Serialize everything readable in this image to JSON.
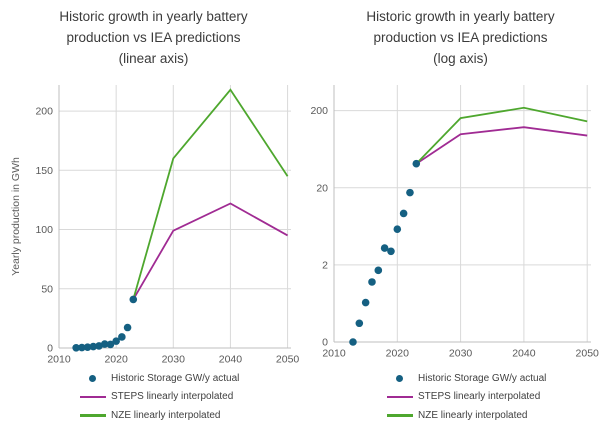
{
  "colors": {
    "historic": "#156082",
    "steps": "#A02B93",
    "nze": "#4EA72E",
    "grid": "#D9D9D9",
    "axis": "#BFBFBF",
    "tick_text": "#595959",
    "title_text": "#3B3B3B",
    "legend_text": "#404040",
    "background": "#FFFFFF"
  },
  "chart_data": [
    {
      "type": "scatter",
      "title": "Historic growth in yearly battery\nproduction vs IEA predictions\n(linear axis)",
      "ylabel": "Yearly production in GWh",
      "xlabel": "",
      "yscale": "linear",
      "grid": true,
      "legend_position": "bottom",
      "xlim": [
        2010,
        2050.6
      ],
      "ylim": [
        0,
        222
      ],
      "xticks": [
        2010,
        2020,
        2030,
        2040,
        2050
      ],
      "xtick_labels": [
        "2010",
        "2020",
        "2030",
        "2040",
        "2050"
      ],
      "yticks": [
        0,
        50,
        100,
        150,
        200
      ],
      "ytick_labels": [
        "0",
        "50",
        "100",
        "150",
        "200"
      ],
      "scatter_series": {
        "name": "Historic Storage GW/y actual",
        "color_key": "historic",
        "x": [
          2013,
          2014,
          2015,
          2016,
          2017,
          2018,
          2019,
          2020,
          2021,
          2022,
          2023
        ],
        "y": [
          0.2,
          0.35,
          0.65,
          1.2,
          1.7,
          3.3,
          3.0,
          5.8,
          9.3,
          17.3,
          41
        ]
      },
      "line_series": [
        {
          "name": "STEPS linearly interpolated",
          "color_key": "steps",
          "x": [
            2023,
            2030,
            2040,
            2050
          ],
          "y": [
            41,
            99,
            122,
            95
          ]
        },
        {
          "name": "NZE linearly interpolated",
          "color_key": "nze",
          "x": [
            2023,
            2030,
            2040,
            2050
          ],
          "y": [
            41,
            160,
            218,
            145
          ]
        }
      ],
      "legend": [
        {
          "marker": "dot",
          "color_key": "historic",
          "label": "Historic Storage GW/y actual"
        },
        {
          "marker": "line",
          "color_key": "steps",
          "label": "STEPS linearly interpolated"
        },
        {
          "marker": "line",
          "color_key": "nze",
          "label": "NZE linearly interpolated"
        }
      ]
    },
    {
      "type": "scatter",
      "title": "Historic growth in yearly battery\nproduction vs IEA predictions\n(log axis)",
      "ylabel": "",
      "xlabel": "",
      "yscale": "log",
      "grid": true,
      "legend_position": "bottom",
      "xlim": [
        2010,
        2050.6
      ],
      "ylim": [
        0.2,
        430
      ],
      "xticks": [
        2010,
        2020,
        2030,
        2040,
        2050
      ],
      "xtick_labels": [
        "2010",
        "2020",
        "2030",
        "2040",
        "2050"
      ],
      "yticks": [
        0.2,
        2,
        20,
        200
      ],
      "ytick_labels": [
        "0",
        "2",
        "20",
        "200"
      ],
      "scatter_series": {
        "name": "Historic Storage GW/y actual",
        "color_key": "historic",
        "x": [
          2013,
          2014,
          2015,
          2016,
          2017,
          2018,
          2019,
          2020,
          2021,
          2022,
          2023
        ],
        "y": [
          0.2,
          0.35,
          0.65,
          1.2,
          1.7,
          3.3,
          3.0,
          5.8,
          9.3,
          17.3,
          41
        ]
      },
      "line_series": [
        {
          "name": "STEPS linearly interpolated",
          "color_key": "steps",
          "x": [
            2023,
            2030,
            2040,
            2050
          ],
          "y": [
            41,
            99,
            122,
            95
          ]
        },
        {
          "name": "NZE linearly interpolated",
          "color_key": "nze",
          "x": [
            2023,
            2030,
            2040,
            2050
          ],
          "y": [
            41,
            160,
            218,
            145
          ]
        }
      ],
      "legend": [
        {
          "marker": "dot",
          "color_key": "historic",
          "label": "Historic Storage GW/y actual"
        },
        {
          "marker": "line",
          "color_key": "steps",
          "label": "STEPS linearly interpolated"
        },
        {
          "marker": "line",
          "color_key": "nze",
          "label": "NZE linearly interpolated"
        }
      ]
    }
  ]
}
